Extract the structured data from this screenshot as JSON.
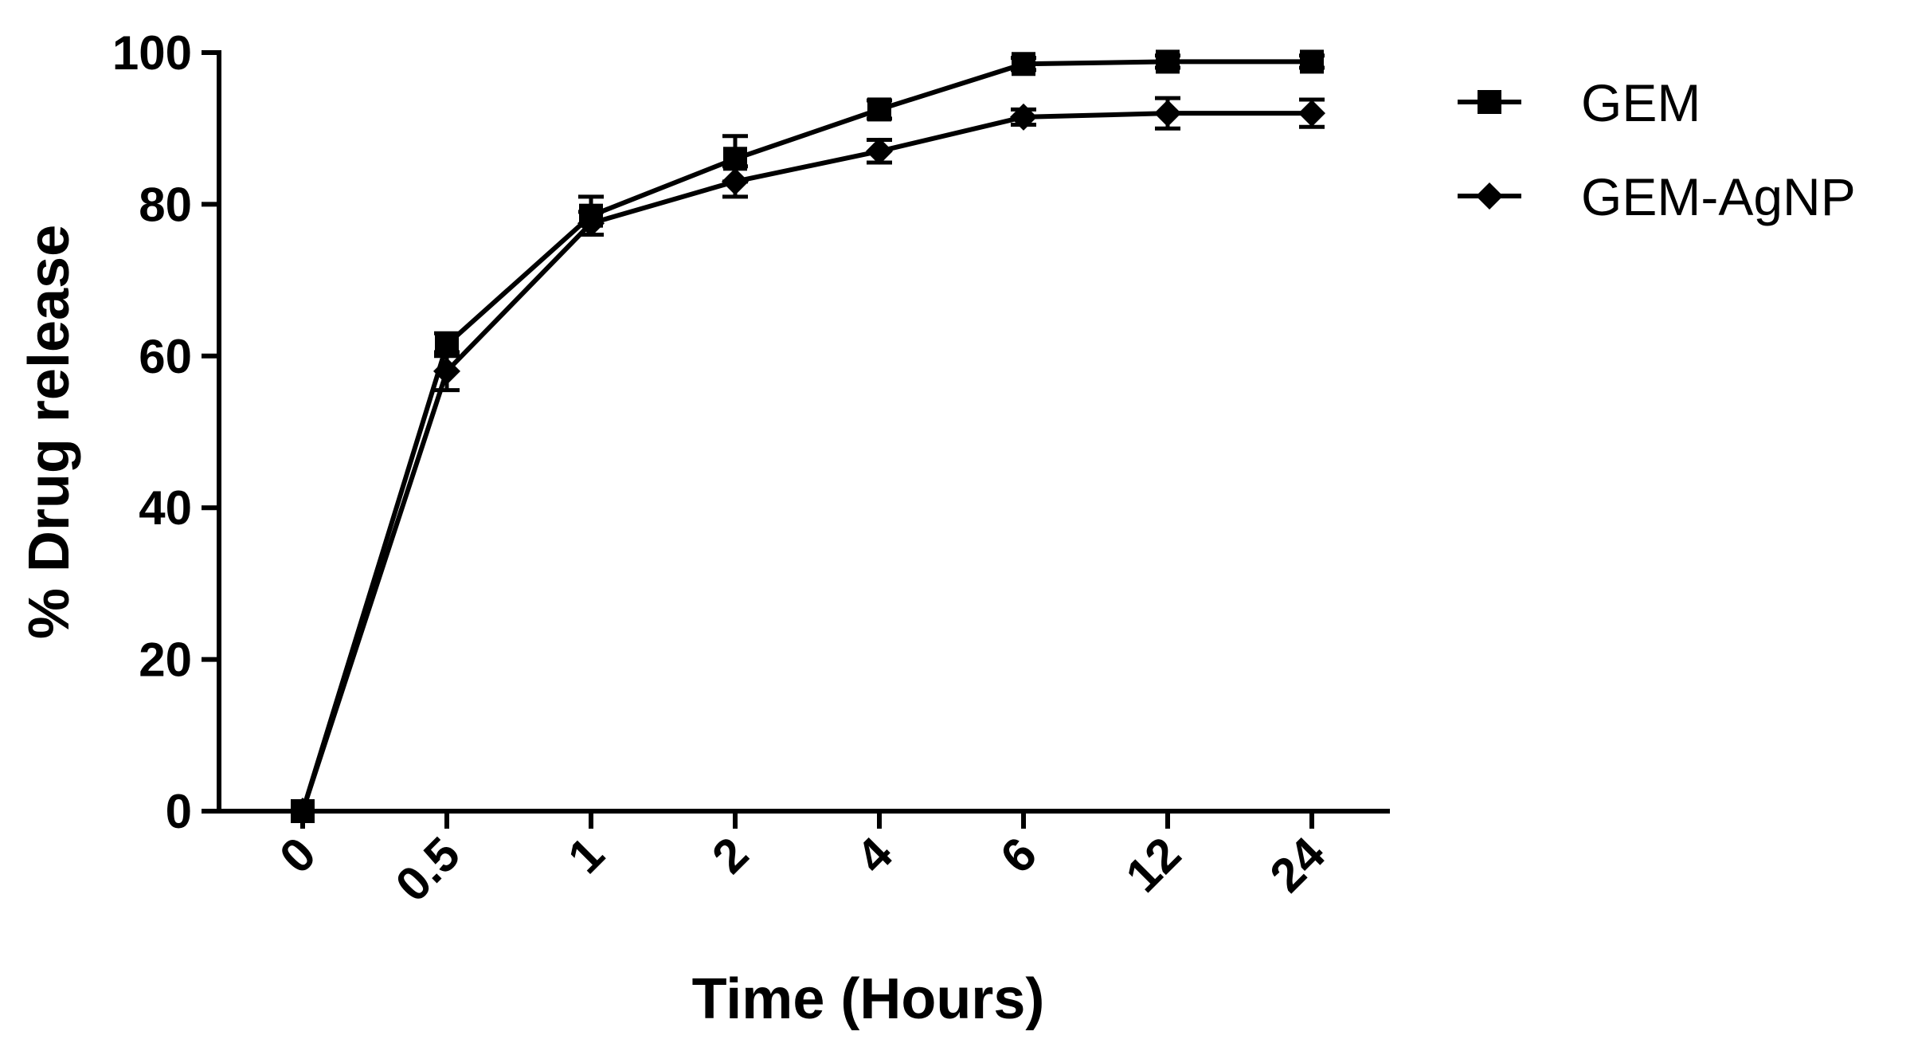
{
  "chart_data": {
    "type": "line",
    "x": [
      "0",
      "0.5",
      "1",
      "2",
      "4",
      "6",
      "12",
      "24"
    ],
    "xlabel": "Time (Hours)",
    "ylabel": "% Drug release",
    "ylim": [
      0,
      100
    ],
    "yticks": [
      "0",
      "20",
      "40",
      "60",
      "80",
      "100"
    ],
    "grid": false,
    "legend_position": "top-right",
    "series": [
      {
        "name": "GEM",
        "marker": "square",
        "values": [
          0,
          61.5,
          78.5,
          86.0,
          92.5,
          98.5,
          98.8,
          98.8
        ],
        "errors": [
          0,
          1.5,
          2.5,
          3.0,
          1.2,
          0.8,
          0.8,
          0.8
        ]
      },
      {
        "name": "GEM-AgNP",
        "marker": "diamond",
        "values": [
          0,
          58.0,
          77.5,
          83.0,
          87.0,
          91.5,
          92.0,
          92.0
        ],
        "errors": [
          0,
          2.5,
          1.5,
          2.0,
          1.5,
          1.0,
          2.0,
          1.8
        ]
      }
    ],
    "colors": {
      "line": "#000000",
      "background": "#ffffff"
    }
  }
}
